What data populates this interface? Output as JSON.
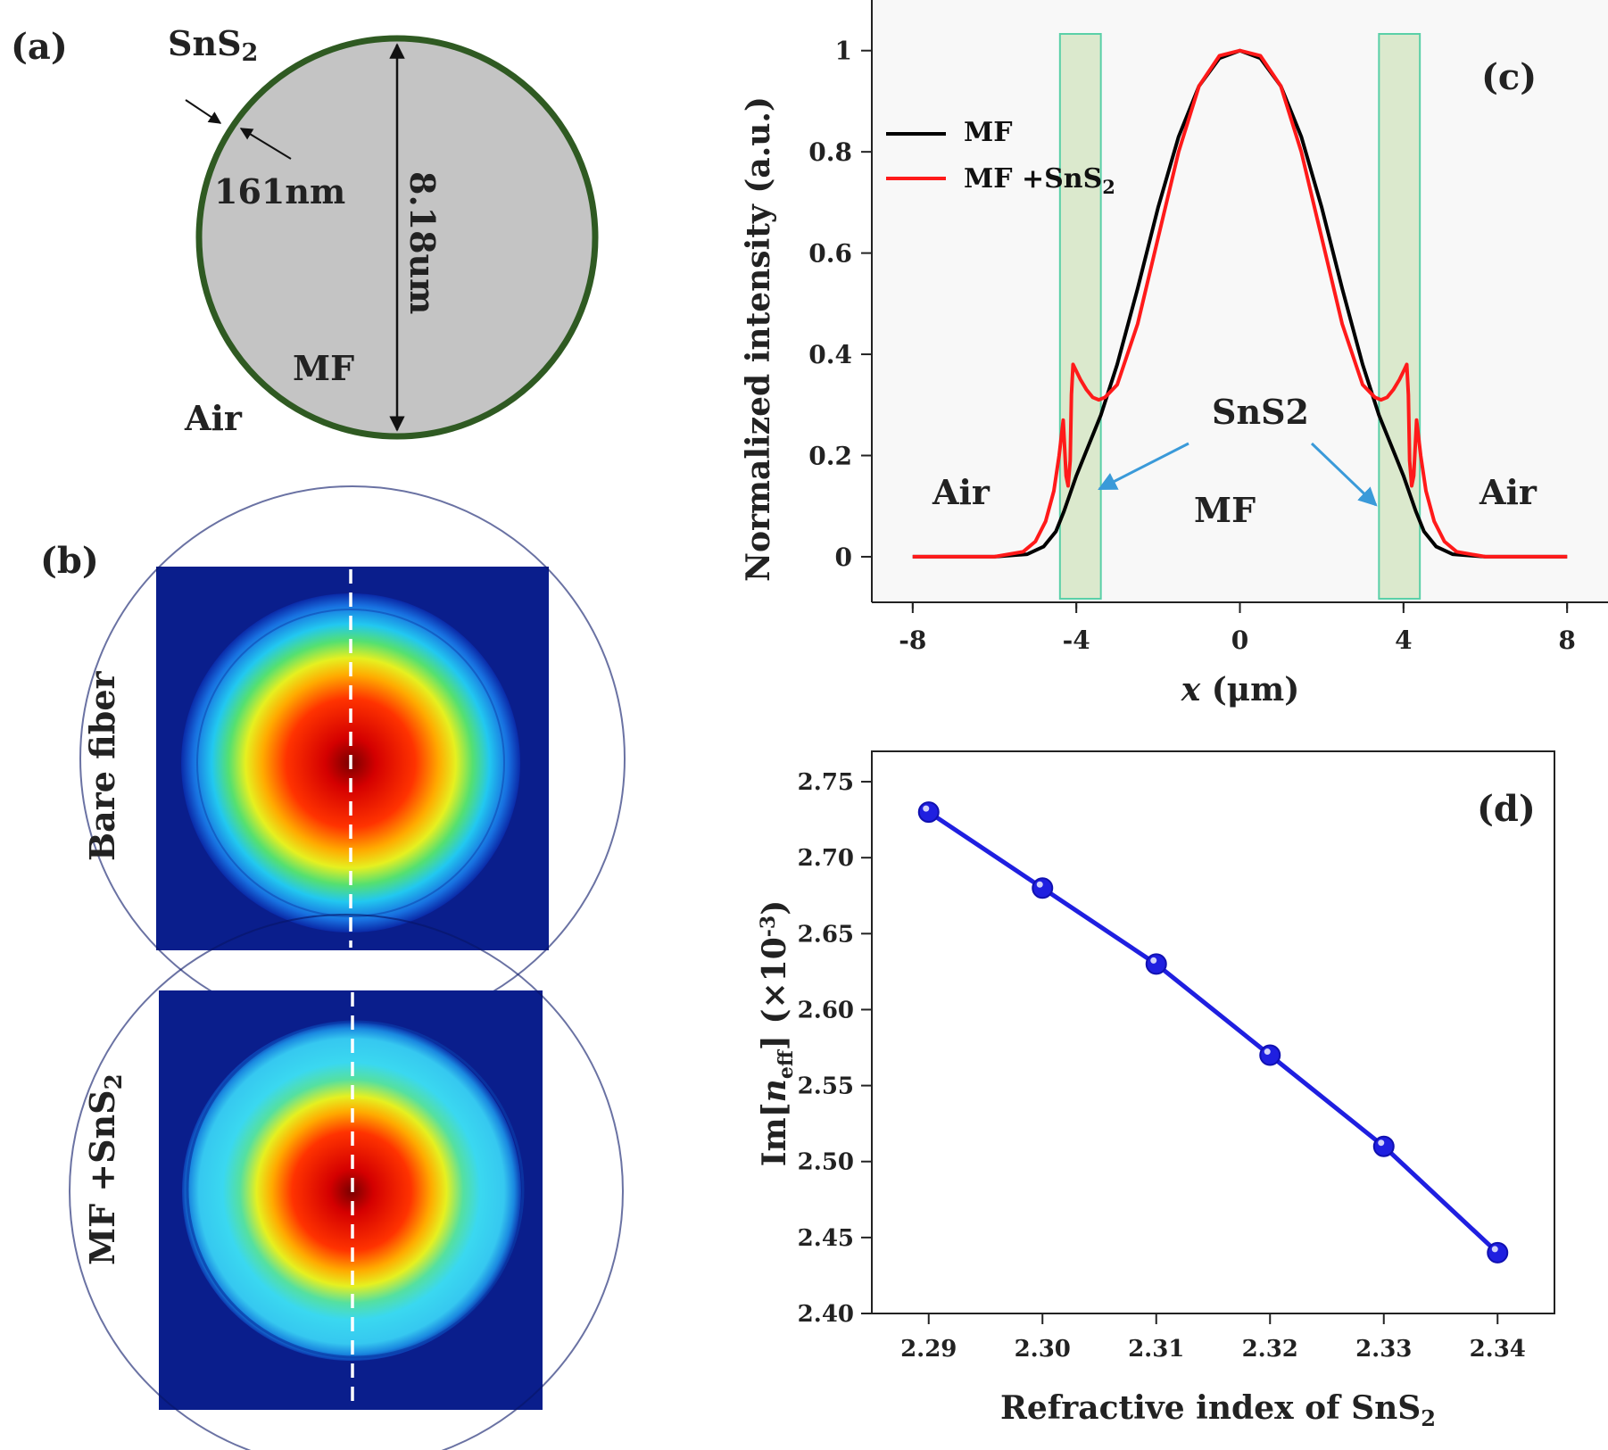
{
  "figure": {
    "panel_a": {
      "label": "(a)",
      "shell_material": "SnS",
      "shell_material_sub": "2",
      "thickness": "161nm",
      "diameter": "8.18um",
      "core_label": "MF",
      "outside_label": "Air",
      "colors": {
        "core": "#c4c4c4",
        "shell": "#2f5a22"
      }
    },
    "panel_b": {
      "label": "(b)",
      "row_labels": [
        "Bare fiber",
        "MF +SnS"
      ],
      "row_label_sub": "2"
    }
  },
  "chart_data": [
    {
      "id": "c",
      "type": "line",
      "panel_label": "(c)",
      "xlabel_var": "x",
      "xlabel_unit": "(μm)",
      "ylabel": "Normalized intensity (a.u.)",
      "xlim": [
        -9,
        9
      ],
      "ylim": [
        -0.09,
        1.1
      ],
      "xticks": [
        -8,
        -4,
        0,
        4,
        8
      ],
      "xtick_labels": [
        "-8",
        "-4",
        "0",
        "4",
        "8"
      ],
      "yticks": [
        0,
        0.2,
        0.4,
        0.6,
        0.8,
        1
      ],
      "ytick_labels": [
        "0",
        "0.2",
        "0.4",
        "0.6",
        "0.8",
        "1"
      ],
      "shaded_regions": [
        [
          -4.4,
          -3.4
        ],
        [
          3.4,
          4.4
        ]
      ],
      "region_labels": {
        "left": "Air",
        "center": "MF",
        "right": "Air",
        "shell": "SnS2"
      },
      "legend": [
        {
          "name": "MF",
          "color": "#000000"
        },
        {
          "name": "MF +SnS",
          "sub": "2",
          "color": "#ff1a1a"
        }
      ],
      "series": [
        {
          "name": "MF",
          "color": "#000000",
          "x": [
            -8,
            -6,
            -5.2,
            -4.8,
            -4.5,
            -4.3,
            -4.0,
            -3.7,
            -3.4,
            -3.0,
            -2.5,
            -2.0,
            -1.5,
            -1.0,
            -0.5,
            0,
            0.5,
            1.0,
            1.5,
            2.0,
            2.5,
            3.0,
            3.4,
            3.7,
            4.0,
            4.3,
            4.5,
            4.8,
            5.2,
            6,
            8
          ],
          "y": [
            0,
            0,
            0.005,
            0.02,
            0.05,
            0.09,
            0.16,
            0.22,
            0.28,
            0.38,
            0.53,
            0.69,
            0.83,
            0.93,
            0.985,
            1.0,
            0.985,
            0.93,
            0.83,
            0.69,
            0.53,
            0.38,
            0.28,
            0.22,
            0.16,
            0.09,
            0.05,
            0.02,
            0.005,
            0,
            0
          ]
        },
        {
          "name": "MF +SnS2",
          "color": "#ff1a1a",
          "x": [
            -8,
            -6,
            -5.3,
            -5.0,
            -4.75,
            -4.55,
            -4.42,
            -4.32,
            -4.25,
            -4.2,
            -4.15,
            -4.12,
            -4.08,
            -4.02,
            -3.9,
            -3.75,
            -3.6,
            -3.45,
            -3.3,
            -3.0,
            -2.5,
            -2.0,
            -1.5,
            -1.0,
            -0.5,
            0,
            0.5,
            1.0,
            1.5,
            2.0,
            2.5,
            3.0,
            3.3,
            3.45,
            3.6,
            3.75,
            3.9,
            4.02,
            4.08,
            4.12,
            4.15,
            4.2,
            4.25,
            4.32,
            4.42,
            4.55,
            4.75,
            5.0,
            5.3,
            6,
            8
          ],
          "y": [
            0,
            0,
            0.01,
            0.03,
            0.07,
            0.13,
            0.2,
            0.27,
            0.16,
            0.14,
            0.19,
            0.32,
            0.38,
            0.37,
            0.35,
            0.33,
            0.315,
            0.31,
            0.315,
            0.34,
            0.46,
            0.63,
            0.8,
            0.93,
            0.99,
            1.0,
            0.99,
            0.93,
            0.8,
            0.63,
            0.46,
            0.34,
            0.315,
            0.31,
            0.315,
            0.33,
            0.35,
            0.37,
            0.38,
            0.32,
            0.19,
            0.14,
            0.16,
            0.27,
            0.2,
            0.13,
            0.07,
            0.03,
            0.01,
            0,
            0
          ]
        }
      ]
    },
    {
      "id": "d",
      "type": "line",
      "panel_label": "(d)",
      "xlabel": "Refractive index of SnS",
      "xlabel_sub": "2",
      "ylabel_prefix": "Im[",
      "ylabel_var": "n",
      "ylabel_sub": "eff",
      "ylabel_suffix": "] (×10",
      "ylabel_exp": "-3",
      "ylabel_end": ")",
      "xlim": [
        2.285,
        2.345
      ],
      "ylim": [
        2.4,
        2.77
      ],
      "xticks": [
        2.29,
        2.3,
        2.31,
        2.32,
        2.33,
        2.34
      ],
      "xtick_labels": [
        "2.29",
        "2.30",
        "2.31",
        "2.32",
        "2.33",
        "2.34"
      ],
      "yticks": [
        2.4,
        2.45,
        2.5,
        2.55,
        2.6,
        2.65,
        2.7,
        2.75
      ],
      "ytick_labels": [
        "2.40",
        "2.45",
        "2.50",
        "2.55",
        "2.60",
        "2.65",
        "2.70",
        "2.75"
      ],
      "series": [
        {
          "name": "Im[neff]",
          "color": "#1f1fe0",
          "x": [
            2.29,
            2.3,
            2.31,
            2.32,
            2.33,
            2.34
          ],
          "y": [
            2.73,
            2.68,
            2.63,
            2.57,
            2.51,
            2.44
          ]
        }
      ]
    }
  ]
}
